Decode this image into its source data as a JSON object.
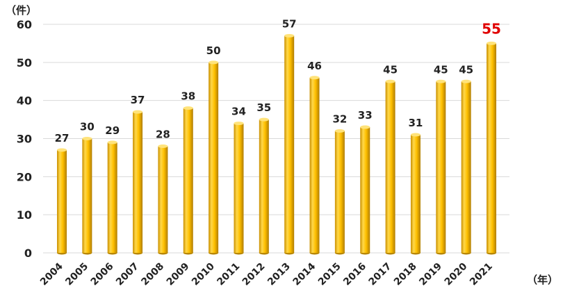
{
  "chart_data": {
    "type": "bar",
    "title": "",
    "xlabel": "（年）",
    "ylabel": "（件）",
    "ylim": [
      0,
      60
    ],
    "yticks": [
      0,
      10,
      20,
      30,
      40,
      50,
      60
    ],
    "grid": true,
    "categories": [
      "2004",
      "2005",
      "2006",
      "2007",
      "2008",
      "2009",
      "2010",
      "2011",
      "2012",
      "2013",
      "2014",
      "2015",
      "2016",
      "2017",
      "2018",
      "2019",
      "2020",
      "2021"
    ],
    "values": [
      27,
      30,
      29,
      37,
      28,
      38,
      50,
      34,
      35,
      57,
      46,
      32,
      33,
      45,
      31,
      45,
      45,
      55
    ],
    "highlight_index": 17,
    "colors": {
      "bar": "#ffc000",
      "bar_dark": "#b88700",
      "bar_light": "#ffe37a",
      "highlight_label": "#e00000",
      "label": "#222222",
      "grid": "#d9d9d9"
    }
  }
}
